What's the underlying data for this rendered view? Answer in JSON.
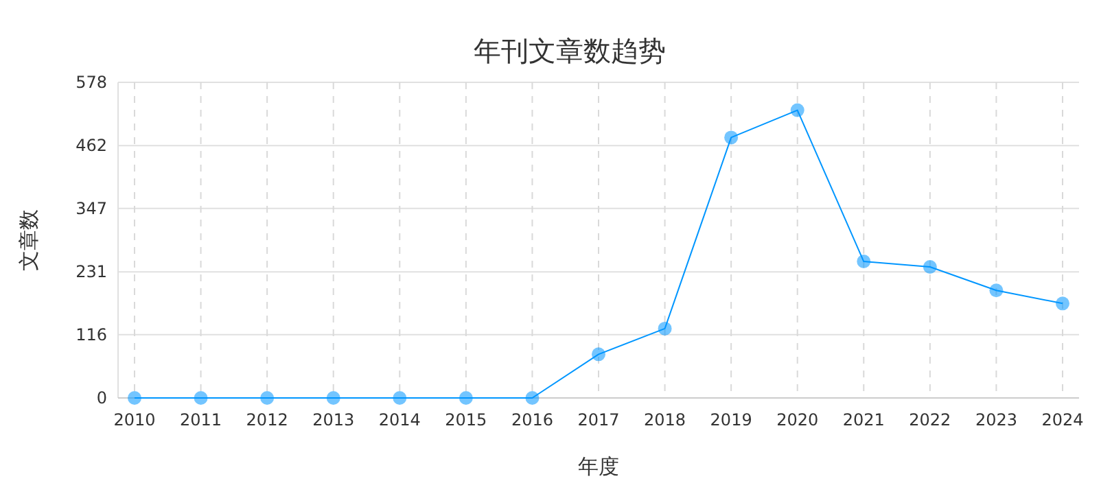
{
  "chart_data": {
    "type": "line",
    "title": "年刊文章数趋势",
    "xlabel": "年度",
    "ylabel": "文章数",
    "categories": [
      "2010",
      "2011",
      "2012",
      "2013",
      "2014",
      "2015",
      "2016",
      "2017",
      "2018",
      "2019",
      "2020",
      "2021",
      "2022",
      "2023",
      "2024"
    ],
    "series": [
      {
        "color": "#0096ff",
        "values": [
          0,
          0,
          0,
          0,
          0,
          0,
          0,
          80,
          127,
          477,
          527,
          250,
          240,
          197,
          173
        ]
      }
    ],
    "ylim": [
      0,
      578
    ],
    "yticks": [
      0,
      116,
      231,
      347,
      462,
      578
    ],
    "grid": true,
    "marker": "circle",
    "line_style": "solid"
  }
}
